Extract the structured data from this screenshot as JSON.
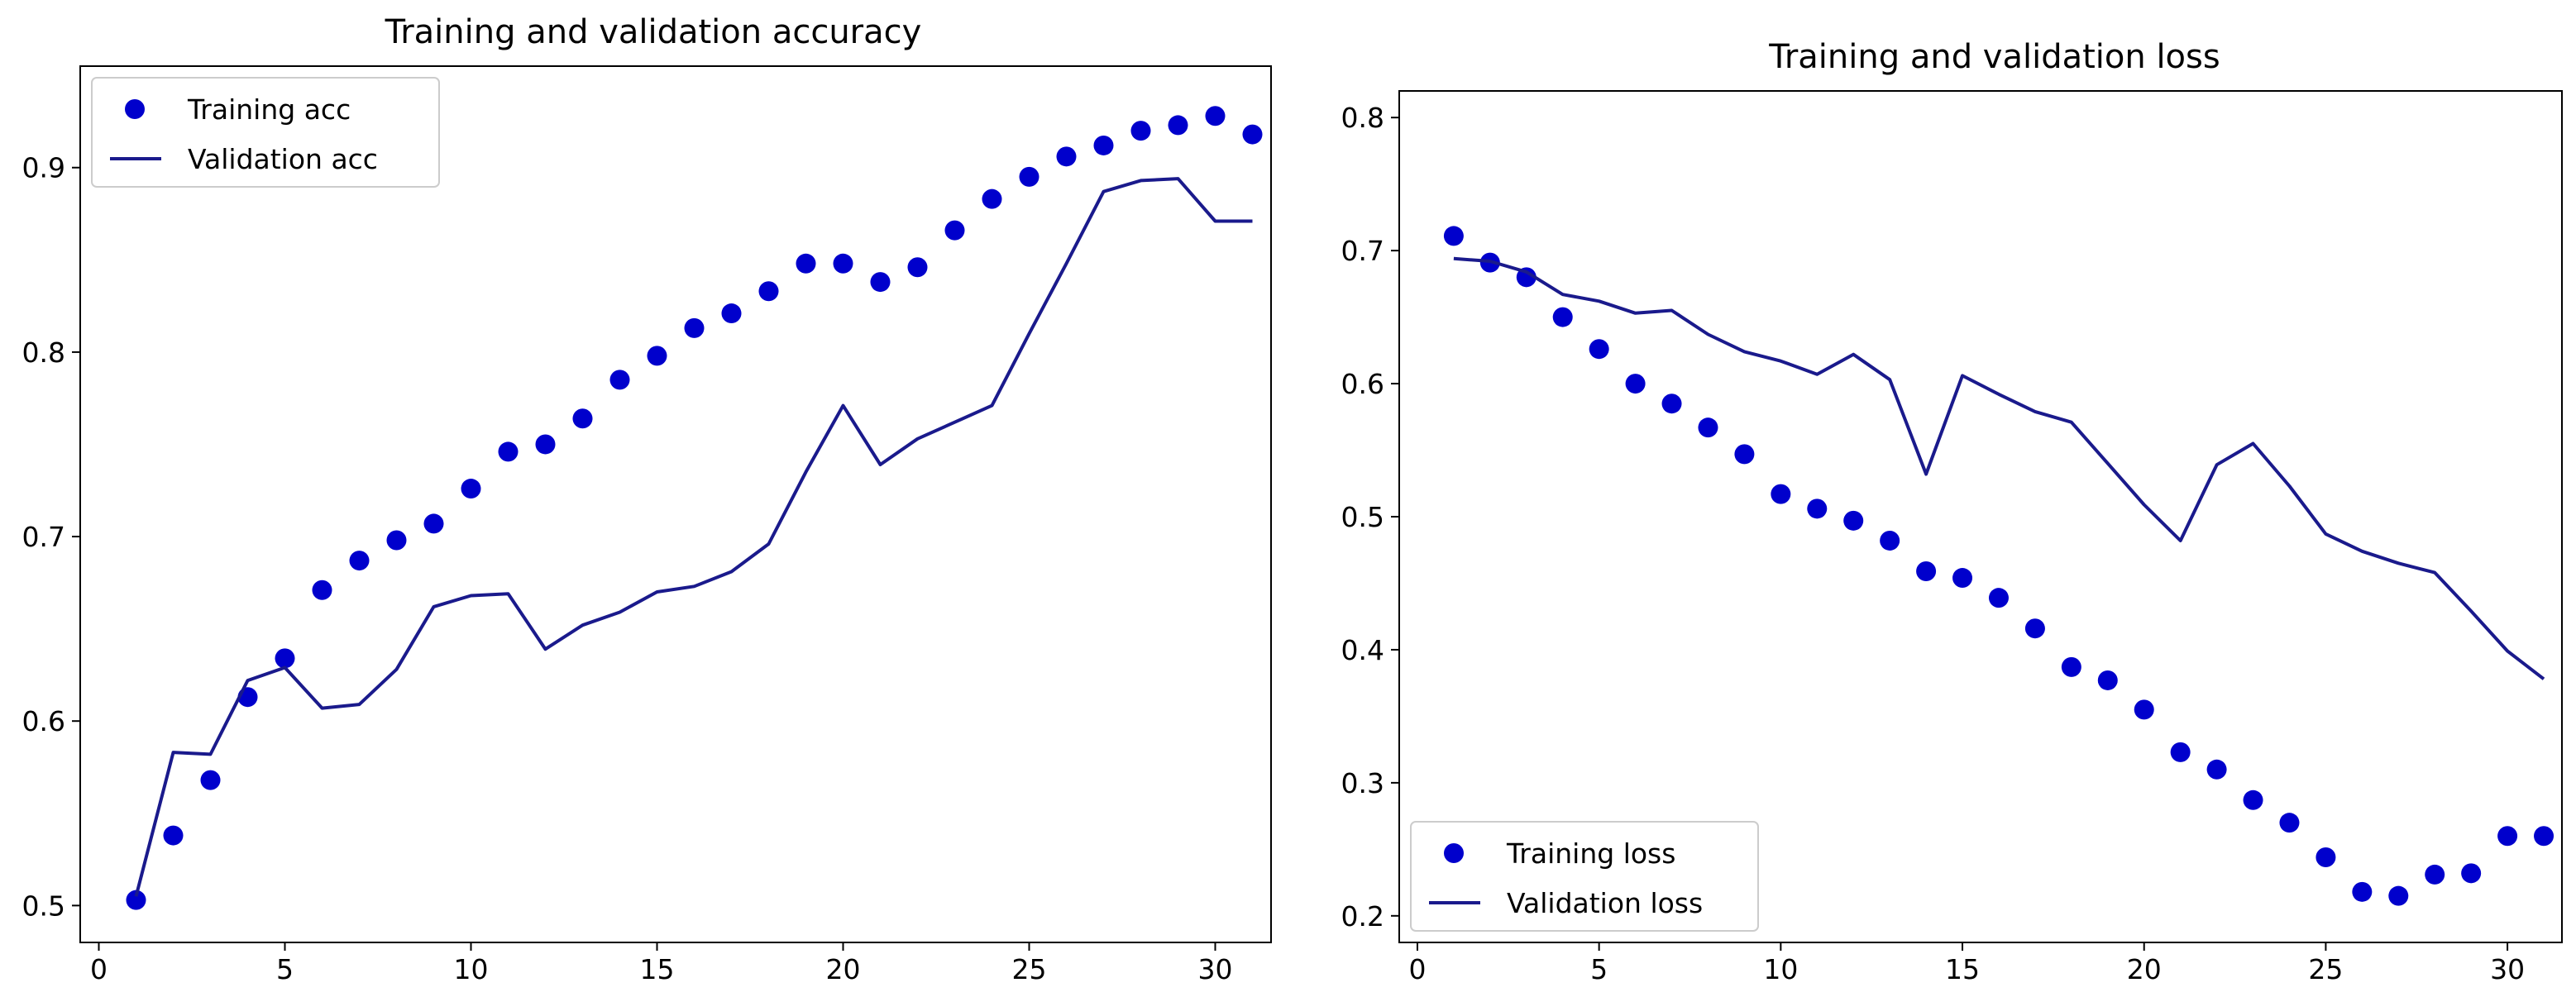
{
  "figure": {
    "charts": [
      "acc-chart",
      "loss-chart"
    ],
    "training_color": "#0000cc",
    "validation_color": "#1a1a8c"
  },
  "chart_data": [
    {
      "id": "acc-chart",
      "type": "line",
      "title": "Training and validation accuracy",
      "xlabel": "",
      "ylabel": "",
      "xlim": [
        -0.5,
        31.5
      ],
      "ylim": [
        0.48,
        0.955
      ],
      "xticks": [
        0,
        5,
        10,
        15,
        20,
        25,
        30
      ],
      "yticks": [
        0.5,
        0.6,
        0.7,
        0.8,
        0.9
      ],
      "ytick_labels": [
        "0.5",
        "0.6",
        "0.7",
        "0.8",
        "0.9"
      ],
      "legend_position": "upper-left",
      "series": [
        {
          "name": "Training acc",
          "style": "dots",
          "x": [
            1,
            2,
            3,
            4,
            5,
            6,
            7,
            8,
            9,
            10,
            11,
            12,
            13,
            14,
            15,
            16,
            17,
            18,
            19,
            20,
            21,
            22,
            23,
            24,
            25,
            26,
            27,
            28,
            29,
            30,
            31
          ],
          "y": [
            0.503,
            0.538,
            0.568,
            0.613,
            0.634,
            0.671,
            0.687,
            0.698,
            0.707,
            0.726,
            0.746,
            0.75,
            0.764,
            0.785,
            0.798,
            0.813,
            0.821,
            0.833,
            0.848,
            0.848,
            0.838,
            0.846,
            0.866,
            0.883,
            0.895,
            0.906,
            0.912,
            0.92,
            0.923,
            0.928,
            0.918
          ]
        },
        {
          "name": "Validation acc",
          "style": "line",
          "x": [
            1,
            2,
            3,
            4,
            5,
            6,
            7,
            8,
            9,
            10,
            11,
            12,
            13,
            14,
            15,
            16,
            17,
            18,
            19,
            20,
            21,
            22,
            23,
            24,
            25,
            26,
            27,
            28,
            29,
            30,
            31
          ],
          "y": [
            0.505,
            0.583,
            0.582,
            0.622,
            0.629,
            0.607,
            0.609,
            0.628,
            0.662,
            0.668,
            0.669,
            0.639,
            0.652,
            0.659,
            0.67,
            0.673,
            0.681,
            0.696,
            0.735,
            0.771,
            0.739,
            0.753,
            0.762,
            0.771,
            0.81,
            0.848,
            0.887,
            0.893,
            0.894,
            0.871,
            0.871
          ]
        }
      ]
    },
    {
      "id": "loss-chart",
      "type": "line",
      "title": "Training and validation loss",
      "xlabel": "",
      "ylabel": "",
      "xlim": [
        -0.5,
        31.5
      ],
      "ylim": [
        0.18,
        0.82
      ],
      "xticks": [
        0,
        5,
        10,
        15,
        20,
        25,
        30
      ],
      "yticks": [
        0.2,
        0.3,
        0.4,
        0.5,
        0.6,
        0.7,
        0.8
      ],
      "ytick_labels": [
        "0.2",
        "0.3",
        "0.4",
        "0.5",
        "0.6",
        "0.7",
        "0.8"
      ],
      "legend_position": "lower-left",
      "series": [
        {
          "name": "Training loss",
          "style": "dots",
          "x": [
            1,
            2,
            3,
            4,
            5,
            6,
            7,
            8,
            9,
            10,
            11,
            12,
            13,
            14,
            15,
            16,
            17,
            18,
            19,
            20,
            21,
            22,
            23,
            24,
            25,
            26,
            27,
            28,
            29,
            30,
            31
          ],
          "y": [
            0.711,
            0.691,
            0.68,
            0.65,
            0.626,
            0.6,
            0.585,
            0.567,
            0.547,
            0.517,
            0.506,
            0.497,
            0.482,
            0.459,
            0.454,
            0.439,
            0.416,
            0.387,
            0.377,
            0.355,
            0.323,
            0.31,
            0.287,
            0.27,
            0.244,
            0.218,
            0.215,
            0.231,
            0.232,
            0.26,
            0.26
          ]
        },
        {
          "name": "Validation loss",
          "style": "line",
          "x": [
            1,
            2,
            3,
            4,
            5,
            6,
            7,
            8,
            9,
            10,
            11,
            12,
            13,
            14,
            15,
            16,
            17,
            18,
            19,
            20,
            21,
            22,
            23,
            24,
            25,
            26,
            27,
            28,
            29,
            30,
            31
          ],
          "y": [
            0.694,
            0.692,
            0.684,
            0.667,
            0.662,
            0.653,
            0.655,
            0.637,
            0.624,
            0.617,
            0.607,
            0.622,
            0.603,
            0.532,
            0.606,
            0.592,
            0.579,
            0.571,
            0.54,
            0.509,
            0.482,
            0.539,
            0.555,
            0.523,
            0.487,
            0.474,
            0.465,
            0.458,
            0.429,
            0.399,
            0.378
          ]
        }
      ]
    }
  ]
}
